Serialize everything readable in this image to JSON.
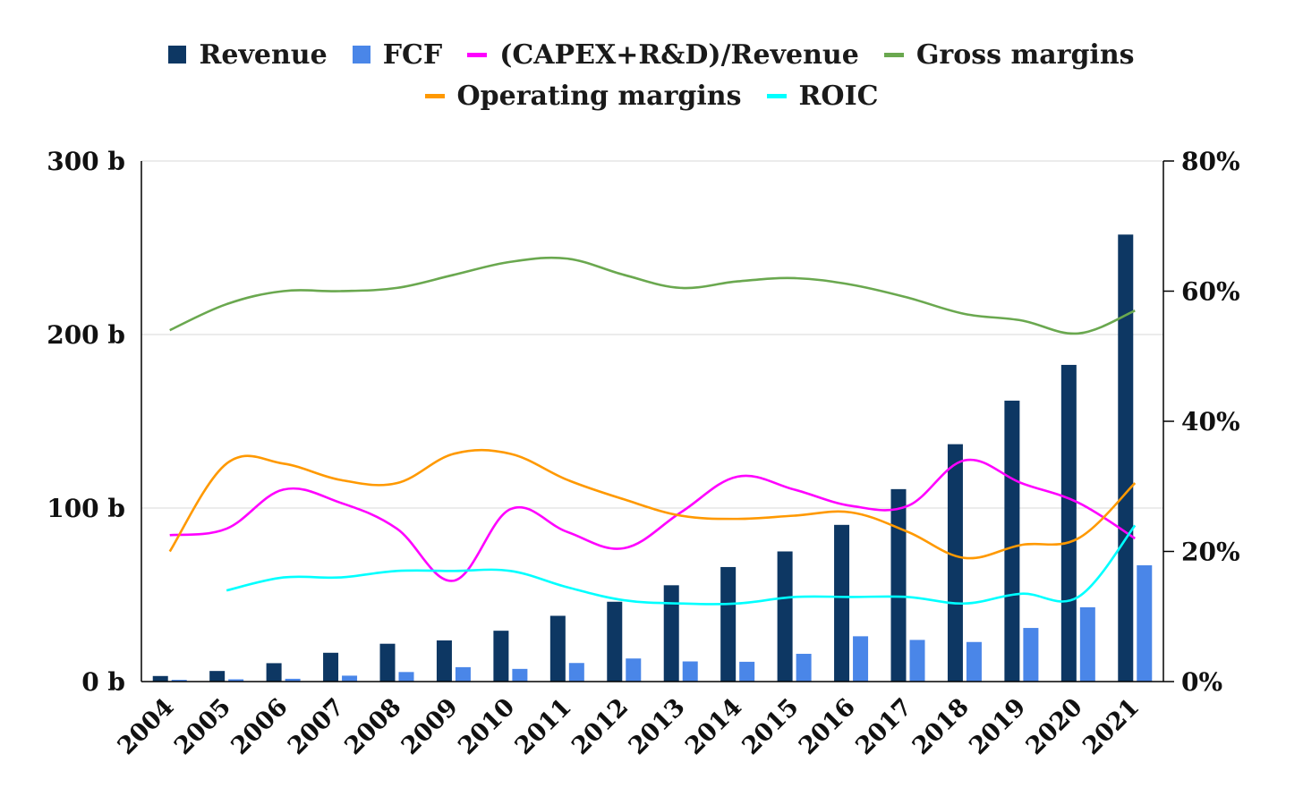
{
  "chart_data": {
    "type": "bar",
    "categories": [
      "2004",
      "2005",
      "2006",
      "2007",
      "2008",
      "2009",
      "2010",
      "2011",
      "2012",
      "2013",
      "2014",
      "2015",
      "2016",
      "2017",
      "2018",
      "2019",
      "2020",
      "2021"
    ],
    "left_axis": {
      "ticks": [
        "0 b",
        "100 b",
        "200 b",
        "300 b"
      ],
      "ylim": [
        0,
        300
      ],
      "unit": "billions"
    },
    "right_axis": {
      "ticks": [
        "0%",
        "20%",
        "40%",
        "60%",
        "80%"
      ],
      "ylim": [
        0,
        80
      ],
      "unit": "percent"
    },
    "grid": "horizontal",
    "legend_position": "top-center",
    "series": [
      {
        "name": "Revenue",
        "type": "bar",
        "axis": "left",
        "color": "#0d3763",
        "values": [
          3.2,
          6.1,
          10.6,
          16.6,
          21.8,
          23.7,
          29.3,
          37.9,
          46.0,
          55.5,
          66.0,
          75.0,
          90.3,
          110.9,
          136.8,
          161.9,
          182.5,
          257.6
        ]
      },
      {
        "name": "FCF",
        "type": "bar",
        "axis": "left",
        "color": "#4a86e8",
        "values": [
          1.0,
          1.3,
          1.6,
          3.4,
          5.5,
          8.3,
          7.3,
          10.7,
          13.3,
          11.6,
          11.4,
          16.0,
          26.1,
          24.0,
          22.8,
          30.9,
          42.8,
          67.0
        ]
      },
      {
        "name": "(CAPEX+R&D)/Revenue",
        "type": "line",
        "axis": "right",
        "color": "#ff00ff",
        "values": [
          22.5,
          23.5,
          29.5,
          27.5,
          23.5,
          15.5,
          26.5,
          23.0,
          20.5,
          26.0,
          31.5,
          29.5,
          27.0,
          27.0,
          34.0,
          30.5,
          27.5,
          22.0
        ]
      },
      {
        "name": "Gross margins",
        "type": "line",
        "axis": "right",
        "color": "#6aa84f",
        "values": [
          54.0,
          58.0,
          60.0,
          60.0,
          60.5,
          62.5,
          64.5,
          65.0,
          62.5,
          60.5,
          61.5,
          62.0,
          61.0,
          59.0,
          56.5,
          55.5,
          53.5,
          57.0
        ]
      },
      {
        "name": "Operating margins",
        "type": "line",
        "axis": "right",
        "color": "#ff9900",
        "values": [
          20.0,
          33.5,
          33.5,
          31.0,
          30.5,
          35.0,
          35.0,
          31.0,
          28.0,
          25.5,
          25.0,
          25.5,
          26.0,
          23.0,
          19.0,
          21.0,
          22.0,
          30.5
        ]
      },
      {
        "name": "ROIC",
        "type": "line",
        "axis": "right",
        "color": "#00ffff",
        "values": [
          null,
          14.0,
          16.0,
          16.0,
          17.0,
          17.0,
          17.0,
          14.5,
          12.5,
          12.0,
          12.0,
          13.0,
          13.0,
          13.0,
          12.0,
          13.5,
          13.0,
          24.0
        ]
      }
    ]
  }
}
